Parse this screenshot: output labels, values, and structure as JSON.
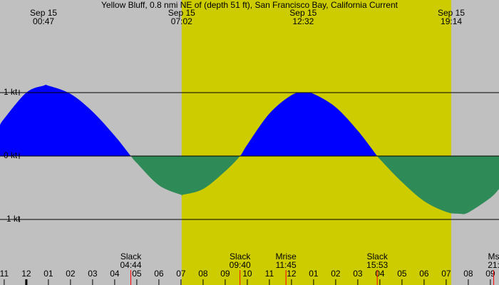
{
  "chart_data": {
    "type": "area",
    "title": "Yellow Bluff, 0.8 nmi NE of (depth 51 ft), San Francisco Bay, California Current",
    "background": "#c0c0c0",
    "daylight": {
      "color": "#cccc00",
      "x": [
        7.03,
        19.23
      ]
    },
    "x": [
      -1.19,
      -1,
      0,
      0.78,
      1,
      2,
      3,
      4,
      4.73,
      5,
      6,
      7,
      7.1,
      8,
      9,
      9.67,
      10,
      11,
      12,
      12.53,
      13,
      14,
      15,
      15.88,
      16,
      17,
      18,
      19,
      19.6,
      20,
      21,
      21.39
    ],
    "values": [
      0.49,
      0.59,
      1.0,
      1.11,
      1.11,
      0.98,
      0.7,
      0.32,
      0,
      -0.11,
      -0.46,
      -0.61,
      -0.61,
      -0.52,
      -0.24,
      0,
      0.18,
      0.67,
      0.96,
      1.0,
      0.98,
      0.77,
      0.4,
      0,
      -0.05,
      -0.41,
      -0.71,
      -0.88,
      -0.91,
      -0.89,
      -0.66,
      -0.52
    ],
    "color": "#0000ff",
    "negative_color": "#2e8b57",
    "xlim": [
      -1.19,
      21.39
    ],
    "ylim": [
      -1,
      1
    ],
    "yticks": [
      {
        "value": 1,
        "label": "1 kt"
      },
      {
        "value": 0,
        "label": "0 kt"
      },
      {
        "value": -1,
        "label": "-1 kt"
      }
    ],
    "xticks": [
      {
        "value": -1,
        "label": "11"
      },
      {
        "value": 0,
        "label": "12"
      },
      {
        "value": 1,
        "label": "01"
      },
      {
        "value": 2,
        "label": "02"
      },
      {
        "value": 3,
        "label": "03"
      },
      {
        "value": 4,
        "label": "04"
      },
      {
        "value": 5,
        "label": "05"
      },
      {
        "value": 6,
        "label": "06"
      },
      {
        "value": 7,
        "label": "07"
      },
      {
        "value": 8,
        "label": "08"
      },
      {
        "value": 9,
        "label": "09"
      },
      {
        "value": 10,
        "label": "10"
      },
      {
        "value": 11,
        "label": "11"
      },
      {
        "value": 12,
        "label": "12"
      },
      {
        "value": 13,
        "label": "01"
      },
      {
        "value": 14,
        "label": "02"
      },
      {
        "value": 15,
        "label": "03"
      },
      {
        "value": 16,
        "label": "04"
      },
      {
        "value": 17,
        "label": "05"
      },
      {
        "value": 18,
        "label": "06"
      },
      {
        "value": 19,
        "label": "07"
      },
      {
        "value": 20,
        "label": "08"
      },
      {
        "value": 21,
        "label": "09"
      }
    ],
    "top_labels": [
      {
        "date": "Sep 15",
        "time": "00:47",
        "x": 0.78
      },
      {
        "date": "Sep 15",
        "time": "07:02",
        "x": 7.03
      },
      {
        "date": "Sep 15",
        "time": "12:32",
        "x": 12.53
      },
      {
        "date": "Sep 15",
        "time": "19:14",
        "x": 19.23
      }
    ],
    "events": [
      {
        "label": "Slack",
        "time": "04:44",
        "x": 4.73
      },
      {
        "label": "Slack",
        "time": "09:40",
        "x": 9.67
      },
      {
        "label": "Mrise",
        "time": "11:45",
        "x": 11.75
      },
      {
        "label": "Slack",
        "time": "15:53",
        "x": 15.88
      },
      {
        "label": "Ms",
        "time": "21:",
        "x": 21.15
      }
    ],
    "event_color": "#ff0000"
  }
}
